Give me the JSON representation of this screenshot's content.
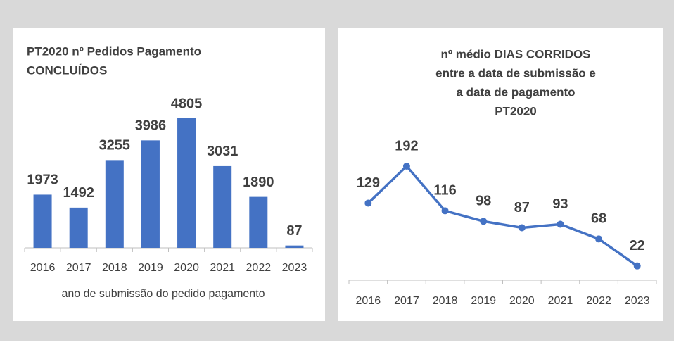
{
  "chart_data": [
    {
      "type": "bar",
      "title": [
        "PT2020 nº Pedidos Pagamento",
        "CONCLUÍDOS"
      ],
      "x_label": "ano de submissão do pedido pagamento",
      "categories": [
        "2016",
        "2017",
        "2018",
        "2019",
        "2020",
        "2021",
        "2022",
        "2023"
      ],
      "values": [
        1973,
        1492,
        3255,
        3986,
        4805,
        3031,
        1890,
        87
      ],
      "color": "#4472c4"
    },
    {
      "type": "line",
      "title": [
        "nº médio DIAS CORRIDOS",
        "entre a data de submissão e",
        "a data de pagamento",
        "PT2020"
      ],
      "categories": [
        "2016",
        "2017",
        "2018",
        "2019",
        "2020",
        "2021",
        "2022",
        "2023"
      ],
      "values": [
        129,
        192,
        116,
        98,
        87,
        93,
        68,
        22
      ],
      "color": "#4472c4"
    }
  ]
}
